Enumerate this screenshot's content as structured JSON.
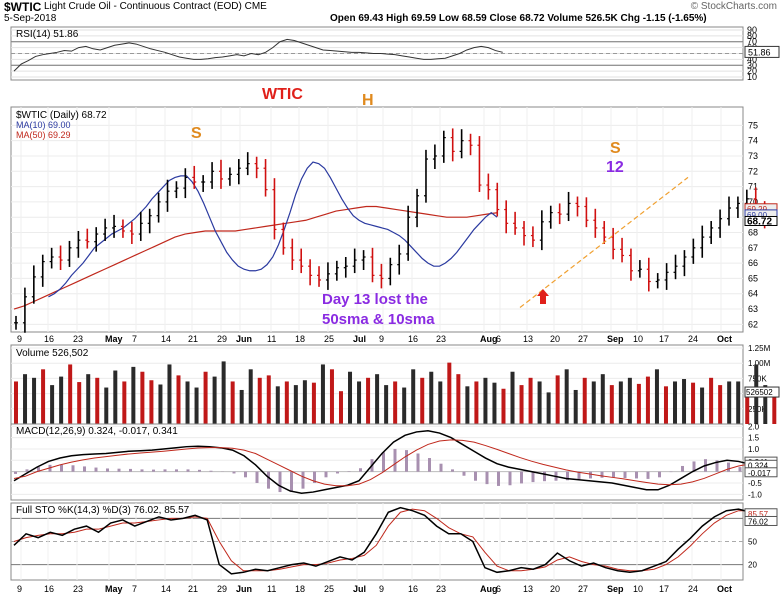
{
  "header": {
    "symbol": "$WTIC",
    "description": "Light Crude Oil - Continuous Contract (EOD) CME",
    "date": "5-Sep-2018",
    "source": "© StockCharts.com",
    "ohlc": "Open 69.43   High 69.59   Low 68.59   Close 68.72   Volume 526.5K   Chg -1.15 (-1.65%)"
  },
  "chart_data": [
    {
      "type": "line",
      "panel": "rsi",
      "title": "RSI(14) 51.86",
      "last": "51.86",
      "ylim": [
        5,
        95
      ],
      "ticks": [
        90,
        80,
        70,
        60,
        50,
        40,
        30,
        20,
        10
      ],
      "guide_lines": [
        70,
        30
      ],
      "values": [
        20,
        32,
        38,
        45,
        48,
        50,
        52,
        55,
        54,
        60,
        62,
        58,
        56,
        60,
        64,
        66,
        68,
        66,
        62,
        58,
        55,
        52,
        48,
        44,
        42,
        40,
        40,
        41,
        43,
        44,
        46,
        48,
        46,
        50,
        48,
        52,
        60,
        70,
        74,
        72,
        68,
        64,
        60,
        56,
        55,
        54,
        53,
        52,
        52,
        51,
        50,
        50,
        49,
        48,
        46,
        44,
        42,
        40,
        40,
        41,
        42,
        46,
        50,
        56,
        60,
        62,
        60,
        55,
        52
      ]
    },
    {
      "type": "bar",
      "panel": "price",
      "title": "$WTIC (Daily) 68.72",
      "legend": [
        {
          "name": "MA(10) 69.00",
          "color": "#2b3aa0"
        },
        {
          "name": "MA(50) 69.29",
          "color": "#c0281c"
        }
      ],
      "ylim": [
        61.5,
        76.2
      ],
      "ticks": [
        75,
        74,
        73,
        72,
        71,
        70,
        69,
        68,
        67,
        66,
        65,
        64,
        63,
        62
      ],
      "last_labels": [
        "69.29",
        "69.00",
        "68.72"
      ],
      "x_labels": [
        "9",
        "16",
        "23",
        "May",
        "7",
        "14",
        "21",
        "29",
        "Jun",
        "11",
        "18",
        "25",
        "Jul",
        "9",
        "16",
        "23",
        "Aug",
        "6",
        "13",
        "20",
        "27",
        "Sep",
        "10",
        "17",
        "24",
        "Oct"
      ],
      "closes": [
        62.1,
        63.8,
        65.1,
        66.1,
        66.4,
        66.2,
        67.0,
        67.5,
        67.4,
        67.9,
        68.3,
        68.4,
        68.1,
        67.9,
        68.6,
        69.1,
        70.0,
        70.7,
        70.9,
        71.6,
        71.3,
        71.3,
        72.0,
        71.5,
        71.8,
        72.2,
        72.5,
        72.2,
        70.8,
        68.2,
        67.0,
        66.2,
        65.8,
        65.2,
        64.9,
        65.3,
        65.7,
        65.8,
        66.2,
        66.4,
        65.2,
        65.0,
        65.9,
        66.6,
        69.0,
        70.4,
        72.8,
        73.0,
        74.2,
        73.3,
        74.0,
        73.7,
        71.1,
        70.8,
        69.5,
        68.6,
        68.3,
        67.8,
        67.5,
        68.7,
        69.3,
        69.2,
        69.9,
        69.7,
        68.8,
        68.3,
        67.7,
        66.9,
        66.5,
        65.5,
        65.6,
        64.8,
        64.9,
        65.4,
        65.8,
        66.4,
        67.0,
        67.7,
        68.3,
        68.9,
        69.6,
        69.9,
        70.2,
        69.6,
        68.72
      ],
      "ma10": [
        63.8,
        64.0,
        64.3,
        64.7,
        65.2,
        65.6,
        66.0,
        66.5,
        67.0,
        67.3,
        67.6,
        67.9,
        68.1,
        68.3,
        68.6,
        68.9,
        69.3,
        69.7,
        70.2,
        70.6,
        71.0,
        71.4,
        71.6,
        71.7,
        71.7,
        71.3,
        70.7,
        69.9,
        69.0,
        68.1,
        67.4,
        66.7,
        66.2,
        65.8,
        65.6,
        65.5,
        65.5,
        65.6,
        65.9,
        66.4,
        67.2,
        68.2,
        69.3,
        70.5,
        71.5,
        72.2,
        72.6,
        72.5,
        72.2,
        71.6,
        70.9,
        70.2,
        69.6,
        69.1,
        68.8,
        68.6,
        68.5,
        68.4,
        68.3,
        68.2,
        68.0,
        67.8,
        67.5,
        67.1,
        66.7,
        66.3,
        66.0,
        65.8,
        65.8,
        66.0,
        66.3,
        66.7,
        67.2,
        67.7,
        68.2,
        68.6,
        69.0,
        69.3,
        69.0
      ],
      "ma50": [
        63.0,
        63.2,
        63.5,
        63.8,
        64.1,
        64.4,
        64.7,
        65.0,
        65.3,
        65.6,
        65.9,
        66.2,
        66.5,
        66.8,
        67.1,
        67.4,
        67.7,
        67.9,
        68.0,
        68.1,
        68.1,
        68.1,
        68.1,
        68.2,
        68.3,
        68.4,
        68.5,
        68.6,
        68.7,
        68.8,
        69.0,
        69.2,
        69.4,
        69.5,
        69.6,
        69.7,
        69.7,
        69.6,
        69.5,
        69.4,
        69.3,
        69.2,
        69.1,
        69.0,
        69.0,
        69.0,
        69.1,
        69.2,
        69.29
      ],
      "annotations": [
        {
          "text": "S",
          "color": "#e08a1e"
        },
        {
          "text": "WTIC",
          "color": "#e0201a"
        },
        {
          "text": "H",
          "color": "#e08a1e"
        },
        {
          "text": "S",
          "color": "#e08a1e"
        },
        {
          "text": "12",
          "color": "#8a2be2"
        },
        {
          "text": "Day 13 lost the",
          "color": "#8a2be2"
        },
        {
          "text": "50sma & 10sma",
          "color": "#8a2be2"
        }
      ]
    },
    {
      "type": "bar",
      "panel": "volume",
      "title": "Volume 526,502",
      "last": "526502",
      "ticks": [
        "1.25M",
        "1.00M",
        "750K",
        "500K",
        "250K"
      ],
      "ylim": [
        0,
        1300
      ],
      "values": [
        700,
        820,
        760,
        900,
        640,
        780,
        980,
        690,
        820,
        760,
        600,
        880,
        700,
        940,
        860,
        720,
        650,
        980,
        800,
        700,
        600,
        860,
        780,
        1030,
        700,
        560,
        900,
        760,
        800,
        620,
        700,
        640,
        720,
        680,
        980,
        900,
        540,
        860,
        700,
        760,
        820,
        640,
        700,
        600,
        900,
        760,
        860,
        700,
        1010,
        820,
        620,
        700,
        760,
        680,
        580,
        860,
        640,
        760,
        700,
        520,
        800,
        900,
        560,
        760,
        700,
        820,
        640,
        700,
        760,
        660,
        780,
        900,
        620,
        700,
        740,
        680,
        600,
        760,
        640,
        700,
        700,
        560,
        980,
        640,
        526
      ]
    },
    {
      "type": "line",
      "panel": "macd",
      "title": "MACD(12,26,9) 0.324, -0.017, 0.341",
      "ylim": [
        -1.25,
        2.1
      ],
      "ticks": [
        "2.0",
        "1.5",
        "1.0",
        "0.5",
        "0.0",
        "-0.5",
        "-1.0"
      ],
      "last_labels": [
        "0.341",
        "0.324",
        "-0.017"
      ],
      "macd": [
        -0.4,
        -0.1,
        0.2,
        0.45,
        0.6,
        0.7,
        0.75,
        0.78,
        0.8,
        0.85,
        0.9,
        0.92,
        0.95,
        1.0,
        1.05,
        1.1,
        1.12,
        1.1,
        1.05,
        0.95,
        0.7,
        0.3,
        -0.2,
        -0.6,
        -0.85,
        -0.95,
        -0.9,
        -0.8,
        -0.7,
        -0.6,
        -0.4,
        0.2,
        0.8,
        1.3,
        1.6,
        1.75,
        1.8,
        1.7,
        1.5,
        1.2,
        0.9,
        0.6,
        0.35,
        0.2,
        0.1,
        0.0,
        -0.1,
        -0.2,
        -0.3,
        -0.35,
        -0.4,
        -0.45,
        -0.5,
        -0.6,
        -0.7,
        -0.8,
        -0.8,
        -0.6,
        -0.3,
        0.0,
        0.25,
        0.4,
        0.5,
        0.45,
        0.324
      ],
      "signal": [
        -0.3,
        -0.2,
        0.0,
        0.15,
        0.3,
        0.42,
        0.52,
        0.6,
        0.66,
        0.72,
        0.78,
        0.82,
        0.86,
        0.9,
        0.95,
        1.0,
        1.04,
        1.06,
        1.06,
        1.03,
        0.95,
        0.8,
        0.55,
        0.3,
        0.05,
        -0.2,
        -0.4,
        -0.55,
        -0.62,
        -0.62,
        -0.55,
        -0.35,
        -0.05,
        0.3,
        0.65,
        0.95,
        1.2,
        1.35,
        1.4,
        1.38,
        1.3,
        1.15,
        0.98,
        0.8,
        0.62,
        0.46,
        0.32,
        0.2,
        0.08,
        -0.02,
        -0.1,
        -0.18,
        -0.25,
        -0.32,
        -0.4,
        -0.48,
        -0.55,
        -0.58,
        -0.55,
        -0.45,
        -0.3,
        -0.1,
        0.1,
        0.25,
        0.341
      ]
    },
    {
      "type": "line",
      "panel": "stochastic",
      "title": "Full STO %K(14,3) %D(3) 76.02, 85.57",
      "ylim": [
        0,
        100
      ],
      "ticks": [
        80,
        50,
        20
      ],
      "guide_lines": [
        80,
        20
      ],
      "last_labels": [
        "85.57",
        "76.02"
      ],
      "k": [
        45,
        60,
        55,
        62,
        58,
        66,
        70,
        62,
        74,
        78,
        70,
        76,
        82,
        78,
        80,
        84,
        78,
        20,
        8,
        10,
        14,
        12,
        16,
        20,
        22,
        18,
        24,
        30,
        26,
        36,
        60,
        88,
        94,
        90,
        84,
        70,
        60,
        60,
        50,
        16,
        10,
        12,
        16,
        14,
        20,
        35,
        25,
        18,
        22,
        16,
        12,
        10,
        12,
        18,
        24,
        40,
        54,
        70,
        82,
        90,
        92,
        88,
        76.02
      ],
      "d": [
        50,
        55,
        58,
        60,
        60,
        62,
        66,
        66,
        70,
        74,
        74,
        76,
        78,
        80,
        80,
        82,
        80,
        50,
        25,
        12,
        12,
        12,
        14,
        17,
        20,
        20,
        22,
        26,
        28,
        32,
        45,
        70,
        88,
        92,
        90,
        80,
        68,
        60,
        56,
        36,
        18,
        12,
        12,
        14,
        17,
        26,
        30,
        24,
        20,
        18,
        14,
        12,
        12,
        14,
        20,
        30,
        44,
        60,
        74,
        84,
        90,
        90,
        85.57
      ]
    }
  ]
}
